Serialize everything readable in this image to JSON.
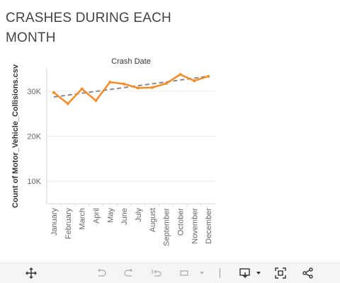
{
  "title": "CRASHES DURING EACH MONTH",
  "chart_data": {
    "type": "line",
    "title": "Crash Date",
    "ylabel": "Count of Motor_Vehicle_Collisions.csv",
    "categories": [
      "January",
      "February",
      "March",
      "April",
      "May",
      "June",
      "July",
      "August",
      "September",
      "October",
      "November",
      "December"
    ],
    "series": [
      {
        "values": [
          29700,
          27200,
          30500,
          27900,
          32000,
          31600,
          30700,
          30800,
          31700,
          33700,
          32300,
          33300
        ]
      }
    ],
    "trend_line": {
      "start": 28700,
      "end": 33300
    },
    "ylim": [
      5000,
      35000
    ],
    "yticks": [
      10000,
      20000,
      30000
    ],
    "ytick_labels": [
      "10K",
      "20K",
      "30K"
    ],
    "grid": true,
    "colors": {
      "series": "#f28e2b",
      "trend": "#888888"
    }
  },
  "toolbar": {
    "icons": [
      "move-icon",
      "undo-icon",
      "redo-icon",
      "revert-icon",
      "refresh-icon",
      "pause-icon",
      "download-icon",
      "fullscreen-icon",
      "share-icon"
    ]
  }
}
